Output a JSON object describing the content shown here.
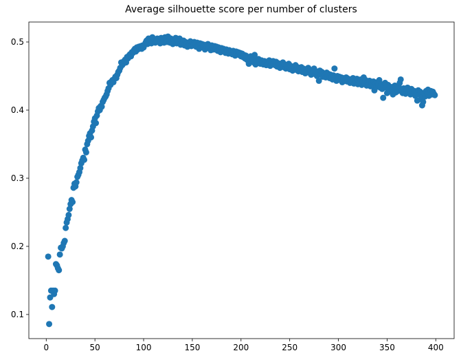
{
  "chart_data": {
    "type": "scatter",
    "title": "Average silhouette score per number of clusters",
    "color": "#1f77b4",
    "xlim": [
      -17.85,
      418.85
    ],
    "ylim": [
      0.0646,
      0.5293
    ],
    "xticks": [
      0,
      50,
      100,
      150,
      200,
      250,
      300,
      350,
      400
    ],
    "yticks": [
      0.1,
      0.2,
      0.3,
      0.4,
      0.5
    ],
    "x": [
      2,
      3,
      4,
      5,
      6,
      7,
      8,
      9,
      10,
      11,
      12,
      13,
      14,
      15,
      16,
      17,
      18,
      19,
      20,
      21,
      22,
      23,
      24,
      25,
      26,
      27,
      28,
      29,
      30,
      31,
      32,
      33,
      34,
      35,
      36,
      37,
      38,
      39,
      40,
      41,
      42,
      43,
      44,
      45,
      46,
      47,
      48,
      49,
      50,
      51,
      52,
      53,
      54,
      55,
      56,
      57,
      58,
      59,
      60,
      61,
      62,
      63,
      64,
      65,
      66,
      67,
      68,
      69,
      70,
      71,
      72,
      73,
      74,
      75,
      76,
      77,
      78,
      79,
      80,
      81,
      82,
      83,
      84,
      85,
      86,
      87,
      88,
      89,
      90,
      91,
      92,
      93,
      94,
      95,
      96,
      97,
      98,
      99,
      100,
      101,
      102,
      103,
      104,
      105,
      106,
      107,
      108,
      109,
      110,
      111,
      112,
      113,
      114,
      115,
      116,
      117,
      118,
      119,
      120,
      121,
      122,
      123,
      124,
      125,
      126,
      127,
      128,
      129,
      130,
      131,
      132,
      133,
      134,
      135,
      136,
      137,
      138,
      139,
      140,
      141,
      142,
      143,
      144,
      145,
      146,
      147,
      148,
      149,
      150,
      151,
      152,
      153,
      154,
      155,
      156,
      157,
      158,
      159,
      160,
      161,
      162,
      163,
      164,
      165,
      166,
      167,
      168,
      169,
      170,
      171,
      172,
      173,
      174,
      175,
      176,
      177,
      178,
      179,
      180,
      181,
      182,
      183,
      184,
      185,
      186,
      187,
      188,
      189,
      190,
      191,
      192,
      193,
      194,
      195,
      196,
      197,
      198,
      199,
      200,
      201,
      202,
      203,
      204,
      205,
      206,
      207,
      208,
      209,
      210,
      211,
      212,
      213,
      214,
      215,
      216,
      217,
      218,
      219,
      220,
      221,
      222,
      223,
      224,
      225,
      226,
      227,
      228,
      229,
      230,
      231,
      232,
      233,
      234,
      235,
      236,
      237,
      238,
      239,
      240,
      241,
      242,
      243,
      244,
      245,
      246,
      247,
      248,
      249,
      250,
      251,
      252,
      253,
      254,
      255,
      256,
      257,
      258,
      259,
      260,
      261,
      262,
      263,
      264,
      265,
      266,
      267,
      268,
      269,
      270,
      271,
      272,
      273,
      274,
      275,
      276,
      277,
      278,
      279,
      280,
      281,
      282,
      283,
      284,
      285,
      286,
      287,
      288,
      289,
      290,
      291,
      292,
      293,
      294,
      295,
      296,
      297,
      298,
      299,
      300,
      301,
      302,
      303,
      304,
      305,
      306,
      307,
      308,
      309,
      310,
      311,
      312,
      313,
      314,
      315,
      316,
      317,
      318,
      319,
      320,
      321,
      322,
      323,
      324,
      325,
      326,
      327,
      328,
      329,
      330,
      331,
      332,
      333,
      334,
      335,
      336,
      337,
      338,
      339,
      340,
      341,
      342,
      343,
      344,
      345,
      346,
      347,
      348,
      349,
      350,
      351,
      352,
      353,
      354,
      355,
      356,
      357,
      358,
      359,
      360,
      361,
      362,
      363,
      364,
      365,
      366,
      367,
      368,
      369,
      370,
      371,
      372,
      373,
      374,
      375,
      376,
      377,
      378,
      379,
      380,
      381,
      382,
      383,
      384,
      385,
      386,
      387,
      388,
      389,
      390,
      391,
      392,
      393,
      394,
      395,
      396,
      397,
      398,
      399
    ],
    "values": [
      0.185,
      0.086,
      0.125,
      0.135,
      0.111,
      0.135,
      0.13,
      0.135,
      0.174,
      0.172,
      0.168,
      0.165,
      0.188,
      0.198,
      0.197,
      0.2,
      0.205,
      0.208,
      0.227,
      0.235,
      0.24,
      0.246,
      0.255,
      0.262,
      0.268,
      0.265,
      0.286,
      0.292,
      0.288,
      0.294,
      0.302,
      0.305,
      0.309,
      0.315,
      0.322,
      0.326,
      0.33,
      0.327,
      0.342,
      0.338,
      0.35,
      0.355,
      0.362,
      0.366,
      0.36,
      0.37,
      0.376,
      0.383,
      0.388,
      0.381,
      0.392,
      0.398,
      0.403,
      0.4,
      0.406,
      0.405,
      0.412,
      0.415,
      0.418,
      0.42,
      0.423,
      0.428,
      0.432,
      0.44,
      0.437,
      0.442,
      0.444,
      0.441,
      0.446,
      0.449,
      0.447,
      0.452,
      0.456,
      0.458,
      0.462,
      0.47,
      0.466,
      0.468,
      0.472,
      0.474,
      0.47,
      0.478,
      0.476,
      0.48,
      0.482,
      0.479,
      0.485,
      0.484,
      0.488,
      0.49,
      0.486,
      0.492,
      0.489,
      0.493,
      0.491,
      0.494,
      0.49,
      0.495,
      0.492,
      0.496,
      0.499,
      0.502,
      0.497,
      0.505,
      0.5,
      0.503,
      0.498,
      0.507,
      0.501,
      0.504,
      0.499,
      0.502,
      0.505,
      0.5,
      0.503,
      0.498,
      0.506,
      0.501,
      0.504,
      0.499,
      0.507,
      0.502,
      0.5,
      0.508,
      0.503,
      0.499,
      0.505,
      0.501,
      0.497,
      0.504,
      0.5,
      0.506,
      0.498,
      0.502,
      0.499,
      0.505,
      0.496,
      0.501,
      0.498,
      0.502,
      0.495,
      0.5,
      0.497,
      0.493,
      0.499,
      0.496,
      0.501,
      0.494,
      0.498,
      0.495,
      0.5,
      0.497,
      0.493,
      0.499,
      0.496,
      0.49,
      0.498,
      0.494,
      0.497,
      0.492,
      0.496,
      0.489,
      0.495,
      0.493,
      0.497,
      0.491,
      0.494,
      0.488,
      0.495,
      0.492,
      0.489,
      0.494,
      0.49,
      0.493,
      0.487,
      0.492,
      0.489,
      0.485,
      0.491,
      0.488,
      0.49,
      0.486,
      0.484,
      0.489,
      0.487,
      0.483,
      0.488,
      0.485,
      0.486,
      0.482,
      0.487,
      0.484,
      0.48,
      0.486,
      0.483,
      0.485,
      0.481,
      0.484,
      0.479,
      0.483,
      0.478,
      0.481,
      0.476,
      0.48,
      0.474,
      0.478,
      0.468,
      0.475,
      0.479,
      0.472,
      0.476,
      0.47,
      0.481,
      0.467,
      0.473,
      0.469,
      0.475,
      0.471,
      0.468,
      0.473,
      0.47,
      0.467,
      0.472,
      0.469,
      0.466,
      0.471,
      0.468,
      0.473,
      0.465,
      0.47,
      0.467,
      0.472,
      0.469,
      0.466,
      0.471,
      0.464,
      0.469,
      0.467,
      0.462,
      0.468,
      0.465,
      0.47,
      0.463,
      0.467,
      0.461,
      0.466,
      0.463,
      0.468,
      0.46,
      0.465,
      0.462,
      0.458,
      0.464,
      0.461,
      0.466,
      0.459,
      0.463,
      0.457,
      0.462,
      0.458,
      0.463,
      0.456,
      0.461,
      0.459,
      0.454,
      0.46,
      0.457,
      0.462,
      0.455,
      0.459,
      0.452,
      0.458,
      0.456,
      0.461,
      0.453,
      0.457,
      0.45,
      0.455,
      0.443,
      0.458,
      0.452,
      0.456,
      0.449,
      0.454,
      0.451,
      0.448,
      0.455,
      0.45,
      0.453,
      0.447,
      0.452,
      0.449,
      0.445,
      0.451,
      0.461,
      0.448,
      0.443,
      0.45,
      0.446,
      0.449,
      0.444,
      0.448,
      0.441,
      0.447,
      0.445,
      0.443,
      0.448,
      0.442,
      0.446,
      0.444,
      0.44,
      0.445,
      0.442,
      0.447,
      0.439,
      0.444,
      0.441,
      0.446,
      0.438,
      0.443,
      0.44,
      0.445,
      0.437,
      0.442,
      0.448,
      0.439,
      0.444,
      0.436,
      0.441,
      0.438,
      0.443,
      0.435,
      0.44,
      0.437,
      0.442,
      0.429,
      0.439,
      0.434,
      0.441,
      0.436,
      0.444,
      0.433,
      0.438,
      0.431,
      0.418,
      0.436,
      0.44,
      0.433,
      0.425,
      0.437,
      0.431,
      0.428,
      0.434,
      0.43,
      0.423,
      0.432,
      0.436,
      0.426,
      0.431,
      0.428,
      0.434,
      0.44,
      0.445,
      0.429,
      0.425,
      0.432,
      0.427,
      0.424,
      0.43,
      0.433,
      0.426,
      0.429,
      0.423,
      0.431,
      0.427,
      0.424,
      0.428,
      0.421,
      0.426,
      0.414,
      0.429,
      0.423,
      0.427,
      0.418,
      0.407,
      0.412,
      0.425,
      0.42,
      0.428,
      0.424,
      0.43,
      0.421,
      0.426,
      0.428,
      0.423,
      0.427,
      0.424,
      0.422
    ]
  }
}
